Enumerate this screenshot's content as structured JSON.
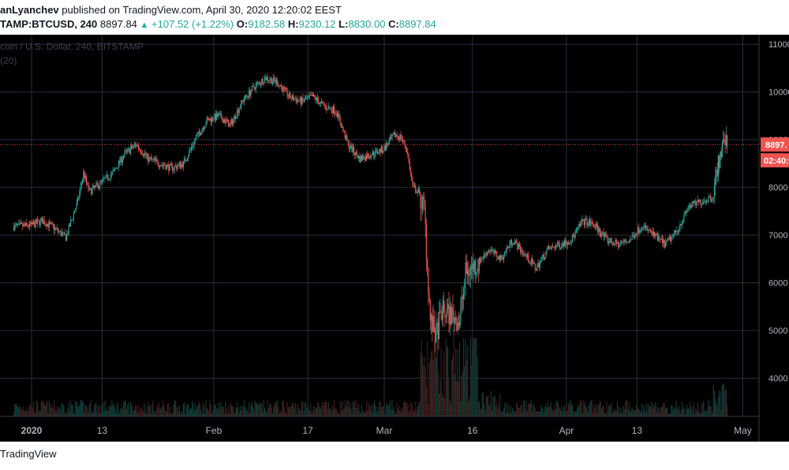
{
  "header": {
    "author": "anLyanchev",
    "published_text": "published on TradingView.com, April 30, 2020 12:20:02 EEST",
    "symbol": "TAMP:BTCUSD, 240",
    "last": "8897.84",
    "change": "+107.52 (+1.22%)",
    "o_label": "O:",
    "o_value": "9182.58",
    "h_label": "H:",
    "h_value": "9230.12",
    "l_label": "L:",
    "l_value": "8830.00",
    "c_label": "C:",
    "c_value": "8897.84"
  },
  "overlay": {
    "title": "coin / U.S. Dollar, 240, BITSTAMP",
    "volume": "(20)"
  },
  "footer": {
    "brand": "TradingView"
  },
  "colors": {
    "up": "#26a69a",
    "down": "#ef5350",
    "background": "#000000",
    "grid": "#2a2e39",
    "price_line": "#ef5350"
  },
  "chart_data": {
    "type": "candlestick",
    "symbol": "BTCUSD",
    "interval": "240",
    "exchange": "BITSTAMP",
    "ylim": [
      3200,
      11200
    ],
    "y_ticks": [
      4000,
      5000,
      6000,
      7000,
      8000,
      9000,
      10000,
      11000
    ],
    "x_ticks": [
      {
        "label": "2020",
        "day": 0,
        "bold": true
      },
      {
        "label": "13",
        "day": 12
      },
      {
        "label": "Feb",
        "day": 31
      },
      {
        "label": "17",
        "day": 47
      },
      {
        "label": "Mar",
        "day": 60
      },
      {
        "label": "16",
        "day": 75
      },
      {
        "label": "Apr",
        "day": 91
      },
      {
        "label": "13",
        "day": 103
      },
      {
        "label": "May",
        "day": 121
      }
    ],
    "price_path": [
      [
        -3,
        7180
      ],
      [
        0,
        7200
      ],
      [
        2,
        7300
      ],
      [
        4,
        7150
      ],
      [
        6,
        6950
      ],
      [
        8,
        7700
      ],
      [
        9,
        8300
      ],
      [
        10,
        7900
      ],
      [
        12,
        8100
      ],
      [
        14,
        8300
      ],
      [
        16,
        8700
      ],
      [
        18,
        8900
      ],
      [
        20,
        8600
      ],
      [
        22,
        8500
      ],
      [
        24,
        8400
      ],
      [
        26,
        8500
      ],
      [
        28,
        9000
      ],
      [
        30,
        9400
      ],
      [
        32,
        9500
      ],
      [
        34,
        9300
      ],
      [
        36,
        9800
      ],
      [
        38,
        10100
      ],
      [
        40,
        10300
      ],
      [
        42,
        10200
      ],
      [
        44,
        9900
      ],
      [
        46,
        9800
      ],
      [
        48,
        9900
      ],
      [
        50,
        9700
      ],
      [
        52,
        9600
      ],
      [
        54,
        8900
      ],
      [
        56,
        8600
      ],
      [
        58,
        8700
      ],
      [
        60,
        8800
      ],
      [
        62,
        9100
      ],
      [
        63,
        9050
      ],
      [
        64,
        8800
      ],
      [
        65,
        8000
      ],
      [
        66,
        7900
      ],
      [
        67,
        7500
      ],
      [
        68,
        5200
      ],
      [
        69,
        4900
      ],
      [
        70,
        5400
      ],
      [
        72,
        5300
      ],
      [
        73,
        5200
      ],
      [
        74,
        6200
      ],
      [
        76,
        6400
      ],
      [
        78,
        6700
      ],
      [
        80,
        6500
      ],
      [
        82,
        6900
      ],
      [
        84,
        6600
      ],
      [
        86,
        6300
      ],
      [
        88,
        6700
      ],
      [
        90,
        6800
      ],
      [
        92,
        6900
      ],
      [
        94,
        7300
      ],
      [
        96,
        7200
      ],
      [
        98,
        6900
      ],
      [
        100,
        6800
      ],
      [
        102,
        6900
      ],
      [
        104,
        7200
      ],
      [
        106,
        7000
      ],
      [
        108,
        6800
      ],
      [
        110,
        7100
      ],
      [
        112,
        7600
      ],
      [
        114,
        7700
      ],
      [
        116,
        7800
      ],
      [
        117,
        8500
      ],
      [
        118,
        9000
      ],
      [
        118.5,
        8897.84
      ]
    ],
    "last_price": 8897.84,
    "last_price_label": "8897.",
    "countdown_label": "02:40:",
    "open": 9182.58,
    "high": 9230.12,
    "low": 8830.0,
    "close": 8897.84
  }
}
